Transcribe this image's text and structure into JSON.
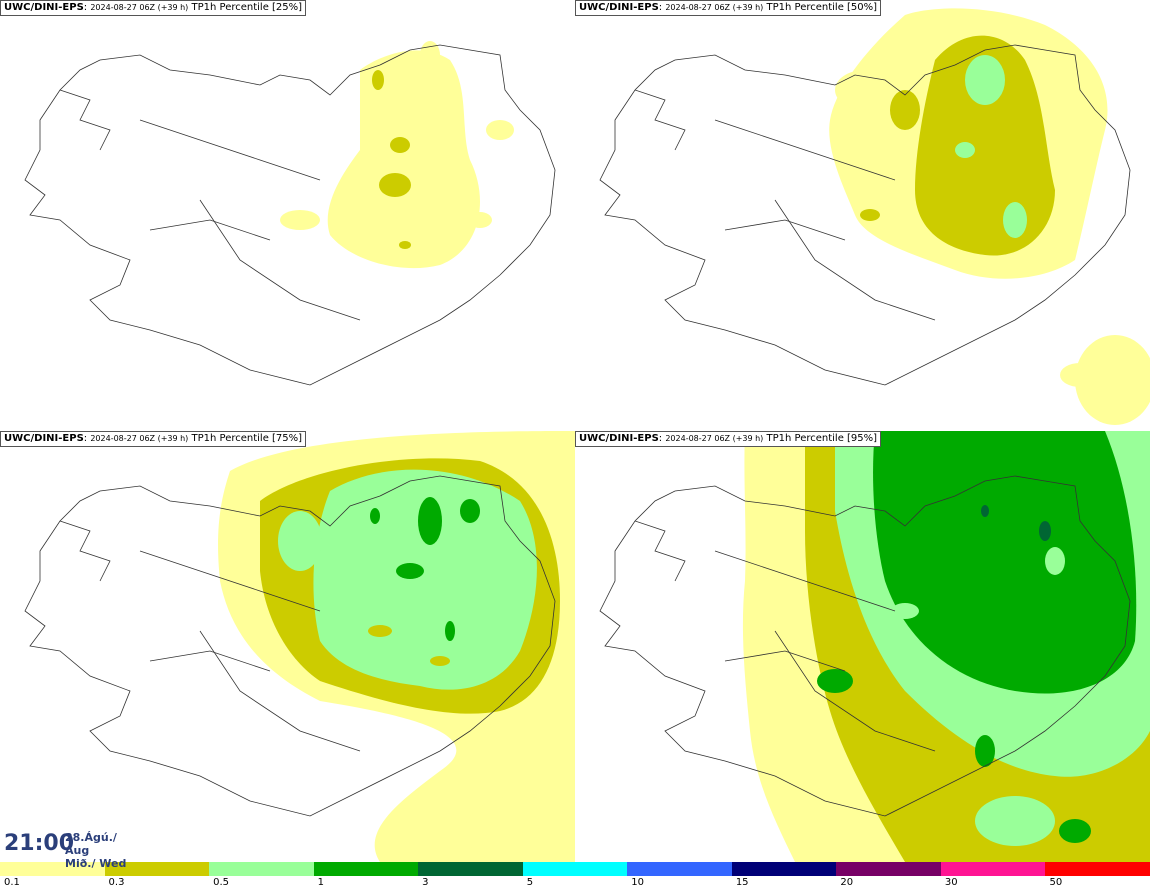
{
  "panels": [
    {
      "source": "UWC/DINI-EPS",
      "run": "2024-08-27 06Z (+39 h)",
      "field": "TP1h Percentile [25%]"
    },
    {
      "source": "UWC/DINI-EPS",
      "run": "2024-08-27 06Z (+39 h)",
      "field": "TP1h Percentile [50%]"
    },
    {
      "source": "UWC/DINI-EPS",
      "run": "2024-08-27 06Z (+39 h)",
      "field": "TP1h Percentile [75%]"
    },
    {
      "source": "UWC/DINI-EPS",
      "run": "2024-08-27 06Z (+39 h)",
      "field": "TP1h Percentile [95%]"
    }
  ],
  "valid": {
    "time": "21:00",
    "date_line1": "28.Ágú./ Aug",
    "date_line2": "Mið./ Wed"
  },
  "legend": {
    "colors": [
      "#ffff99",
      "#cccc00",
      "#99ff99",
      "#00aa00",
      "#006633",
      "#00ffff",
      "#3366ff",
      "#000077",
      "#770066",
      "#ff1493",
      "#ff0000"
    ],
    "labels": [
      "0.1",
      "0.3",
      "0.5",
      "1",
      "3",
      "5",
      "10",
      "15",
      "20",
      "30",
      "50"
    ]
  },
  "precip_colors": {
    "light": "#ffff99",
    "olive": "#cccc00",
    "lightgreen": "#99ff99",
    "green": "#00aa00"
  }
}
